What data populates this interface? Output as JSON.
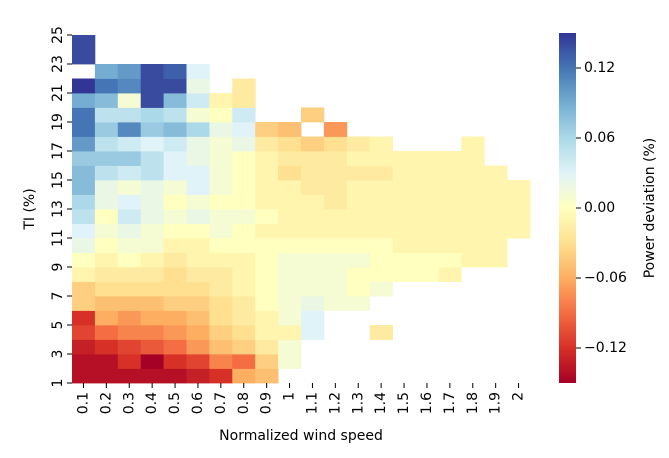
{
  "chart_data": {
    "type": "heatmap",
    "xlabel": "Normalized wind speed",
    "ylabel": "TI (%)",
    "colorbar_label": "Power deviation (%)",
    "colormap": "RdYlBu",
    "categories": [
      "0.1",
      "0.2",
      "0.3",
      "0.4",
      "0.5",
      "0.6",
      "0.7",
      "0.8",
      "0.9",
      "1",
      "1.1",
      "1.2",
      "1.3",
      "1.4",
      "1.5",
      "1.6",
      "1.7",
      "1.8",
      "1.9",
      "2"
    ],
    "ylim": [
      1,
      25
    ],
    "yticks": [
      1,
      3,
      5,
      7,
      9,
      11,
      13,
      15,
      17,
      19,
      21,
      23,
      25
    ],
    "clim": [
      -0.15,
      0.15
    ],
    "cticks": [
      {
        "value": -0.12,
        "label": "−0.12"
      },
      {
        "value": -0.06,
        "label": "−0.06"
      },
      {
        "value": 0,
        "label": "0.00"
      },
      0.06,
      0.12
    ],
    "z": [
      [
        -0.14,
        -0.14,
        -0.14,
        -0.14,
        -0.14,
        -0.13,
        -0.12,
        -0.06,
        -0.05,
        null,
        null,
        null,
        null,
        null,
        null,
        null,
        null,
        null,
        null,
        null
      ],
      [
        -0.14,
        -0.14,
        -0.12,
        -0.15,
        -0.12,
        -0.11,
        -0.08,
        -0.09,
        -0.04,
        0.01,
        null,
        null,
        null,
        null,
        null,
        null,
        null,
        null,
        null,
        null
      ],
      [
        -0.13,
        -0.12,
        -0.11,
        -0.1,
        -0.09,
        -0.07,
        -0.05,
        -0.04,
        -0.02,
        0.01,
        null,
        null,
        null,
        null,
        null,
        null,
        null,
        null,
        null,
        null
      ],
      [
        -0.11,
        -0.09,
        -0.08,
        -0.08,
        -0.07,
        -0.06,
        -0.04,
        -0.03,
        -0.01,
        -0.01,
        0.03,
        null,
        null,
        -0.02,
        null,
        null,
        null,
        null,
        null,
        null
      ],
      [
        -0.12,
        -0.06,
        -0.07,
        -0.06,
        -0.06,
        -0.05,
        -0.03,
        -0.02,
        -0.01,
        0.01,
        0.03,
        null,
        null,
        null,
        null,
        null,
        null,
        null,
        null,
        null
      ],
      [
        -0.04,
        -0.05,
        -0.05,
        -0.05,
        -0.04,
        -0.04,
        -0.03,
        -0.02,
        0,
        0.01,
        0.02,
        0.01,
        0.01,
        null,
        null,
        null,
        null,
        null,
        null,
        null
      ],
      [
        -0.04,
        -0.03,
        -0.03,
        -0.03,
        -0.03,
        -0.03,
        -0.02,
        -0.01,
        0,
        0.01,
        0.01,
        0.01,
        0,
        0.01,
        null,
        null,
        null,
        null,
        null,
        null
      ],
      [
        -0.01,
        -0.02,
        -0.02,
        -0.02,
        -0.03,
        -0.02,
        -0.02,
        -0.01,
        0,
        0.01,
        0.01,
        0.01,
        0,
        0,
        0,
        0,
        -0.01,
        null,
        null,
        null
      ],
      [
        0,
        -0.01,
        0,
        -0.01,
        -0.02,
        -0.01,
        -0.01,
        -0.01,
        0,
        0.01,
        0.01,
        0.01,
        0.01,
        0,
        0,
        0,
        0,
        -0.01,
        -0.01,
        null
      ],
      [
        0.02,
        0,
        0.01,
        0.01,
        -0.01,
        -0.01,
        0,
        0,
        0,
        0,
        0,
        0,
        0,
        0,
        -0.01,
        -0.01,
        -0.01,
        -0.01,
        -0.01,
        null
      ],
      [
        0.03,
        0.01,
        0.02,
        0.01,
        0,
        0,
        0.01,
        0,
        -0.01,
        -0.01,
        -0.01,
        -0.01,
        -0.01,
        -0.01,
        -0.01,
        -0.01,
        -0.01,
        -0.01,
        -0.01,
        -0.01
      ],
      [
        0.05,
        0,
        0.04,
        0.02,
        0.01,
        0.02,
        0.01,
        0.01,
        0,
        -0.01,
        -0.01,
        -0.01,
        -0.01,
        -0.01,
        -0.01,
        -0.01,
        -0.01,
        -0.01,
        -0.01,
        -0.01
      ],
      [
        0.06,
        0.02,
        0.03,
        0.02,
        0,
        0.01,
        0,
        0,
        -0.01,
        -0.01,
        -0.01,
        -0.02,
        -0.01,
        -0.01,
        -0.01,
        -0.01,
        -0.01,
        -0.01,
        -0.01,
        -0.01
      ],
      [
        0.08,
        0.02,
        0.01,
        0.02,
        0.01,
        0.03,
        0.01,
        0,
        -0.01,
        -0.01,
        -0.02,
        -0.02,
        -0.01,
        -0.01,
        -0.01,
        -0.01,
        -0.01,
        -0.01,
        -0.01,
        -0.01
      ],
      [
        0.08,
        0.05,
        0.04,
        0.05,
        0.03,
        0.03,
        0.01,
        0,
        -0.01,
        -0.03,
        -0.02,
        -0.02,
        -0.02,
        -0.02,
        -0.01,
        -0.01,
        -0.01,
        -0.01,
        -0.01,
        null
      ],
      [
        0.07,
        0.07,
        0.07,
        0.05,
        0.03,
        0.02,
        0.01,
        0,
        -0.01,
        -0.02,
        -0.02,
        -0.02,
        -0.01,
        -0.01,
        -0.01,
        -0.01,
        -0.01,
        -0.01,
        null,
        null
      ],
      [
        0.1,
        0.05,
        0.04,
        0.03,
        0.04,
        0.02,
        0.01,
        0.02,
        -0.02,
        -0.03,
        -0.04,
        -0.03,
        -0.02,
        -0.01,
        null,
        null,
        null,
        -0.01,
        null,
        null
      ],
      [
        0.12,
        0.07,
        0.11,
        0.07,
        0.08,
        0.06,
        0.02,
        0.03,
        -0.04,
        -0.05,
        null,
        -0.07,
        null,
        null,
        null,
        null,
        null,
        null,
        null,
        null
      ],
      [
        0.12,
        0.05,
        0.05,
        0.06,
        0.05,
        0.01,
        0,
        0.04,
        null,
        null,
        -0.04,
        null,
        null,
        null,
        null,
        null,
        null,
        null,
        null,
        null
      ],
      [
        0.09,
        0.08,
        0.01,
        0.14,
        0.08,
        0.04,
        -0.01,
        -0.02,
        null,
        null,
        null,
        null,
        null,
        null,
        null,
        null,
        null,
        null,
        null,
        null
      ],
      [
        0.15,
        0.12,
        0.11,
        0.14,
        0.14,
        0.02,
        null,
        -0.02,
        null,
        null,
        null,
        null,
        null,
        null,
        null,
        null,
        null,
        null,
        null,
        null
      ],
      [
        null,
        0.09,
        0.1,
        0.14,
        0.13,
        0.03,
        null,
        null,
        null,
        null,
        null,
        null,
        null,
        null,
        null,
        null,
        null,
        null,
        null,
        null
      ],
      [
        0.14,
        null,
        null,
        null,
        null,
        null,
        null,
        null,
        null,
        null,
        null,
        null,
        null,
        null,
        null,
        null,
        null,
        null,
        null,
        null
      ],
      [
        0.14,
        null,
        null,
        null,
        null,
        null,
        null,
        null,
        null,
        null,
        null,
        null,
        null,
        null,
        null,
        null,
        null,
        null,
        null,
        null
      ]
    ]
  }
}
